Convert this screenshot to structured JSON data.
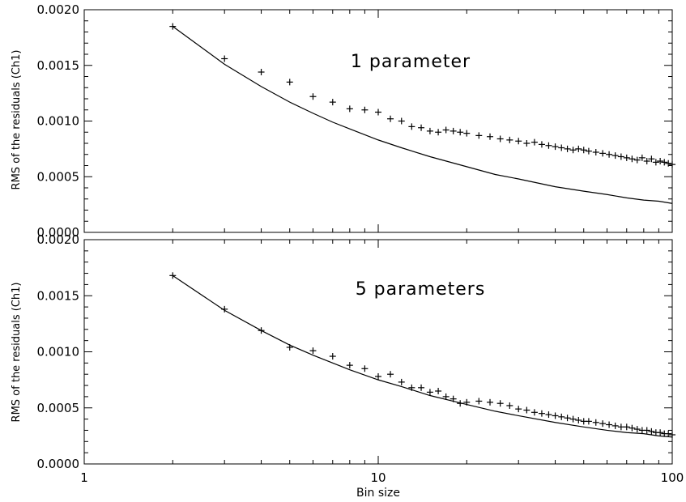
{
  "chart_data": [
    {
      "type": "scatter",
      "annotation": "1 parameter",
      "ylabel": "RMS of the residuals (Ch1)",
      "xlabel": "",
      "xscale": "log",
      "xlim": [
        1,
        100
      ],
      "ylim": [
        0.0,
        0.002
      ],
      "yticks": [
        "0.0000",
        "0.0005",
        "0.0010",
        "0.0015",
        "0.0020"
      ],
      "xticks": [],
      "series": [
        {
          "kind": "points",
          "x": [
            2,
            3,
            4,
            5,
            6,
            7,
            8,
            9,
            10,
            11,
            12,
            13,
            14,
            15,
            16,
            17,
            18,
            19,
            20,
            22,
            24,
            26,
            28,
            30,
            32,
            34,
            36,
            38,
            40,
            42,
            44,
            46,
            48,
            50,
            52,
            55,
            58,
            61,
            64,
            67,
            70,
            73,
            76,
            79,
            82,
            85,
            88,
            91,
            94,
            97,
            100
          ],
          "y": [
            0.00185,
            0.00156,
            0.00144,
            0.00135,
            0.00122,
            0.00117,
            0.00111,
            0.0011,
            0.00108,
            0.00102,
            0.001,
            0.00095,
            0.00094,
            0.00091,
            0.0009,
            0.00092,
            0.00091,
            0.0009,
            0.00089,
            0.00087,
            0.00086,
            0.00084,
            0.00083,
            0.00082,
            0.0008,
            0.00081,
            0.00079,
            0.00078,
            0.00077,
            0.00076,
            0.00075,
            0.00074,
            0.00075,
            0.00074,
            0.00073,
            0.00072,
            0.00071,
            0.0007,
            0.00069,
            0.00068,
            0.00067,
            0.00066,
            0.00065,
            0.00067,
            0.00064,
            0.00066,
            0.00063,
            0.00064,
            0.00063,
            0.00062,
            0.00061
          ]
        },
        {
          "kind": "curve",
          "x": [
            2,
            3,
            4,
            5,
            6,
            7,
            8,
            10,
            12,
            15,
            20,
            25,
            30,
            40,
            50,
            60,
            70,
            80,
            90,
            100
          ],
          "y": [
            0.00185,
            0.00151,
            0.00131,
            0.00117,
            0.00107,
            0.00099,
            0.00093,
            0.00083,
            0.00076,
            0.00068,
            0.00059,
            0.00052,
            0.00048,
            0.00041,
            0.00037,
            0.00034,
            0.00031,
            0.00029,
            0.00028,
            0.00026
          ]
        }
      ]
    },
    {
      "type": "scatter",
      "annotation": "5 parameters",
      "ylabel": "RMS of the residuals (Ch1)",
      "xlabel": "Bin size",
      "xscale": "log",
      "xlim": [
        1,
        100
      ],
      "ylim": [
        0.0,
        0.002
      ],
      "yticks": [
        "0.0000",
        "0.0005",
        "0.0010",
        "0.0015",
        "0.0020"
      ],
      "xticks": [
        "1",
        "10",
        "100"
      ],
      "series": [
        {
          "kind": "points",
          "x": [
            2,
            3,
            4,
            5,
            6,
            7,
            8,
            9,
            10,
            11,
            12,
            13,
            14,
            15,
            16,
            17,
            18,
            19,
            20,
            22,
            24,
            26,
            28,
            30,
            32,
            34,
            36,
            38,
            40,
            42,
            44,
            46,
            48,
            50,
            52,
            55,
            58,
            61,
            64,
            67,
            70,
            73,
            76,
            79,
            82,
            85,
            88,
            91,
            94,
            97,
            100
          ],
          "y": [
            0.00168,
            0.00138,
            0.00119,
            0.00104,
            0.00101,
            0.00096,
            0.00088,
            0.00085,
            0.00078,
            0.0008,
            0.00073,
            0.00068,
            0.00068,
            0.00064,
            0.00065,
            0.0006,
            0.00058,
            0.00054,
            0.00055,
            0.00056,
            0.00055,
            0.00054,
            0.00052,
            0.00049,
            0.00048,
            0.00046,
            0.00045,
            0.00044,
            0.00043,
            0.00042,
            0.00041,
            0.0004,
            0.00039,
            0.00038,
            0.00038,
            0.00037,
            0.00036,
            0.00035,
            0.00034,
            0.00033,
            0.00033,
            0.00032,
            0.00031,
            0.0003,
            0.0003,
            0.00029,
            0.00028,
            0.00028,
            0.00027,
            0.00027,
            0.00026
          ]
        },
        {
          "kind": "curve",
          "x": [
            2,
            3,
            4,
            5,
            6,
            7,
            8,
            10,
            12,
            15,
            20,
            25,
            30,
            40,
            50,
            60,
            70,
            80,
            90,
            100
          ],
          "y": [
            0.00168,
            0.00137,
            0.00119,
            0.00106,
            0.00097,
            0.0009,
            0.00084,
            0.00075,
            0.00069,
            0.00061,
            0.00053,
            0.00047,
            0.00043,
            0.00037,
            0.00033,
            0.0003,
            0.00028,
            0.00027,
            0.00025,
            0.00024
          ]
        }
      ]
    }
  ]
}
